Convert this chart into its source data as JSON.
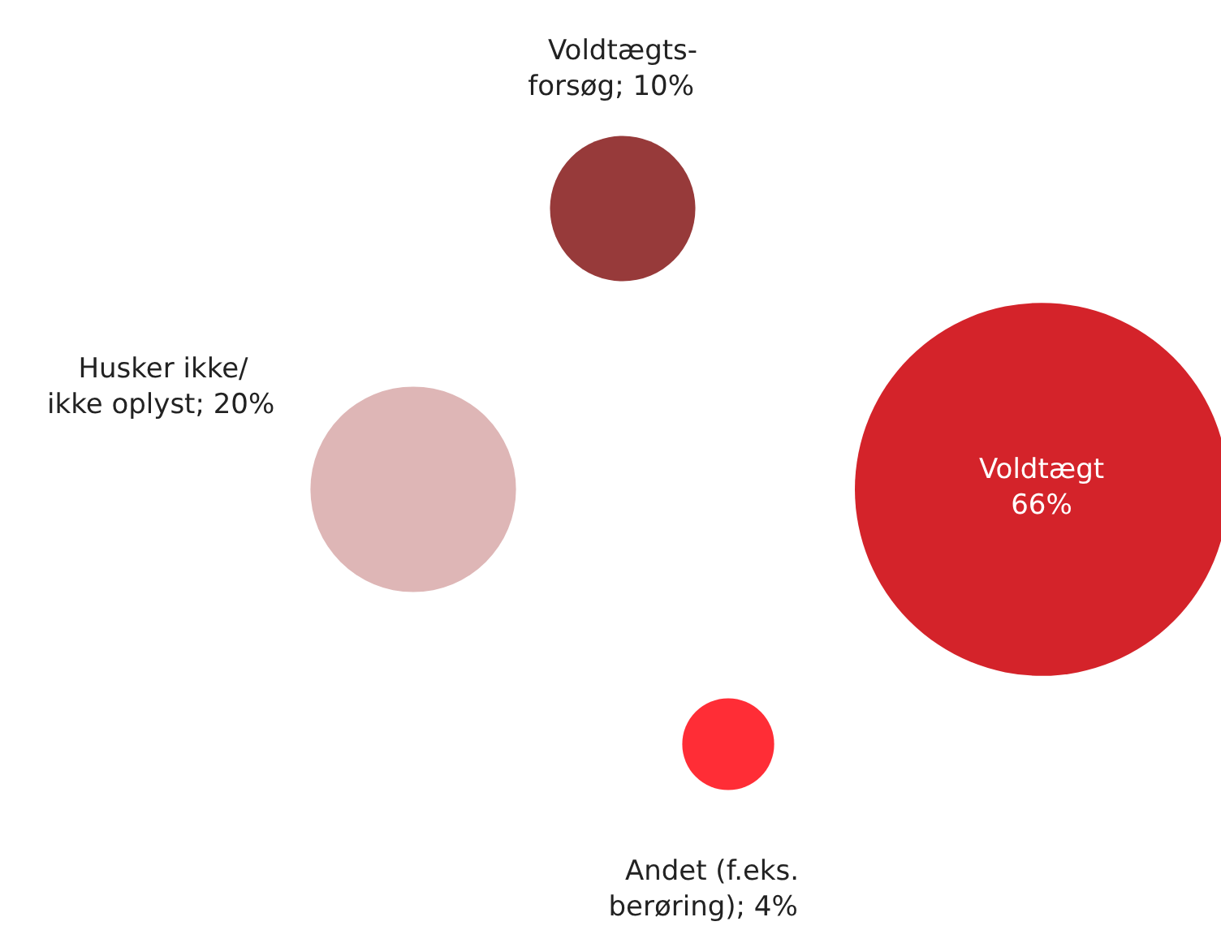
{
  "chart_data": {
    "type": "other",
    "categories": [
      "Voldtægt",
      "Voldtægts-\nforsøg",
      "Husker ikke/\nikke oplyst",
      "Andet (f.eks.\nberøring)"
    ],
    "values": [
      66,
      10,
      20,
      4
    ],
    "value_labels": [
      "66%",
      "; 10%",
      "; 20%",
      "; 4%"
    ],
    "colors": [
      "#d4232a",
      "#973a3a",
      "#deb6b6",
      "#ff2d36"
    ]
  }
}
